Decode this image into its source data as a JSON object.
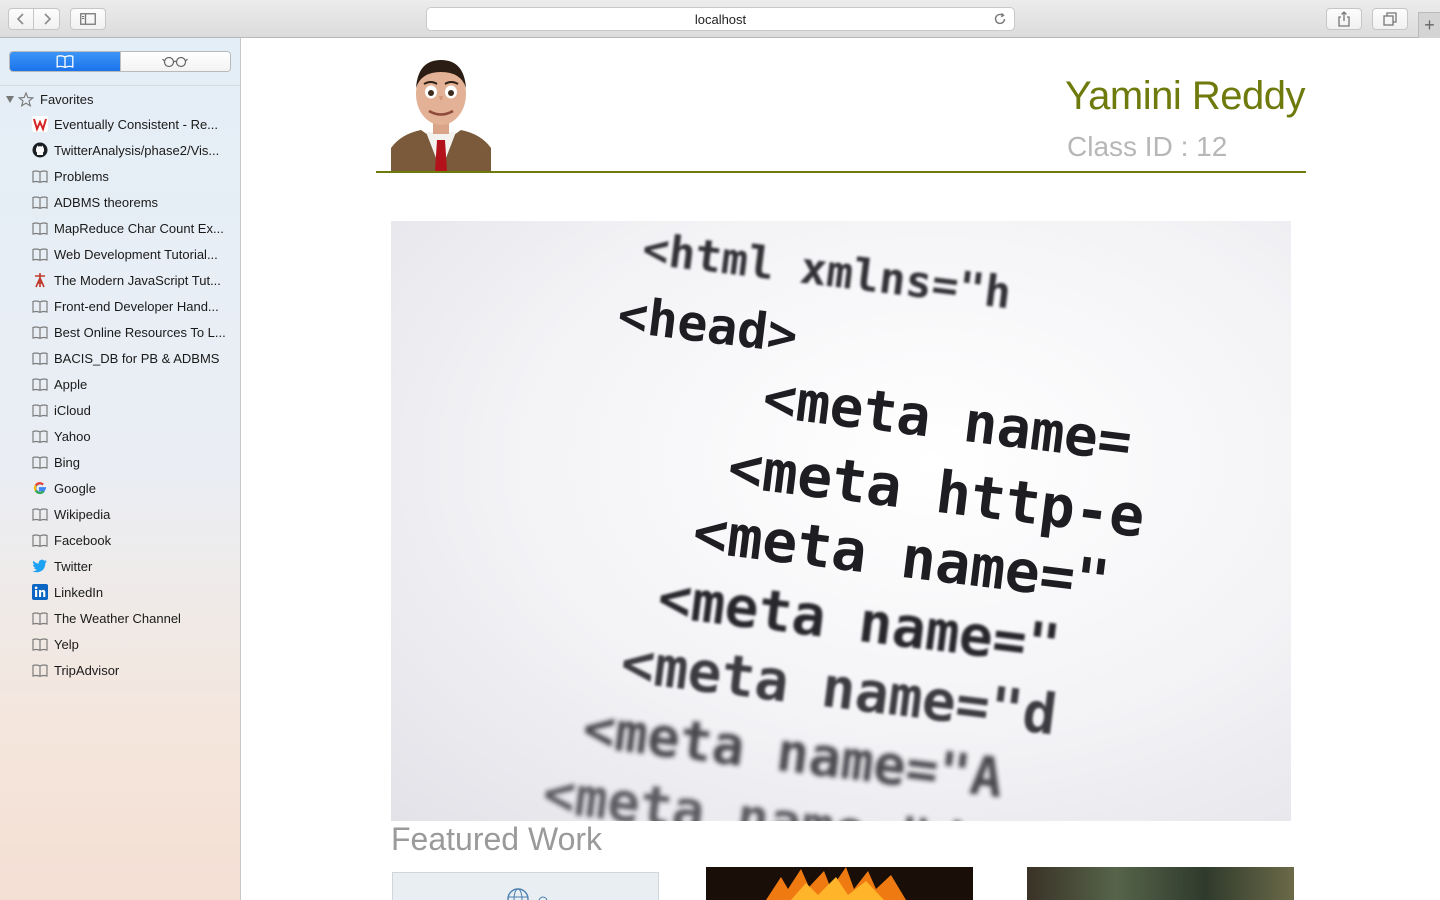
{
  "browser": {
    "url": "localhost"
  },
  "sidebar": {
    "favorites_label": "Favorites",
    "items": [
      {
        "label": "Eventually Consistent - Re...",
        "icon": "w-favicon-icon"
      },
      {
        "label": "TwitterAnalysis/phase2/Vis...",
        "icon": "github-icon"
      },
      {
        "label": "Problems",
        "icon": "bookmark-book-icon"
      },
      {
        "label": "ADBMS theorems",
        "icon": "bookmark-book-icon"
      },
      {
        "label": "MapReduce Char Count Ex...",
        "icon": "bookmark-book-icon"
      },
      {
        "label": "Web Development Tutorial...",
        "icon": "bookmark-book-icon"
      },
      {
        "label": "The Modern JavaScript Tut...",
        "icon": "javascript-info-icon"
      },
      {
        "label": "Front-end Developer Hand...",
        "icon": "bookmark-book-icon"
      },
      {
        "label": "Best Online Resources To L...",
        "icon": "bookmark-book-icon"
      },
      {
        "label": "BACIS_DB for PB & ADBMS",
        "icon": "bookmark-book-icon"
      },
      {
        "label": "Apple",
        "icon": "bookmark-book-icon"
      },
      {
        "label": "iCloud",
        "icon": "bookmark-book-icon"
      },
      {
        "label": "Yahoo",
        "icon": "bookmark-book-icon"
      },
      {
        "label": "Bing",
        "icon": "bookmark-book-icon"
      },
      {
        "label": "Google",
        "icon": "google-icon"
      },
      {
        "label": "Wikipedia",
        "icon": "bookmark-book-icon"
      },
      {
        "label": "Facebook",
        "icon": "bookmark-book-icon"
      },
      {
        "label": "Twitter",
        "icon": "twitter-bird-icon"
      },
      {
        "label": "LinkedIn",
        "icon": "linkedin-icon"
      },
      {
        "label": "The Weather Channel",
        "icon": "bookmark-book-icon"
      },
      {
        "label": "Yelp",
        "icon": "bookmark-book-icon"
      },
      {
        "label": "TripAdvisor",
        "icon": "bookmark-book-icon"
      }
    ]
  },
  "page": {
    "name": "Yamini Reddy",
    "class_id": "Class ID : 12",
    "featured_heading": "Featured Work",
    "hero_code_lines": [
      "<html xmlns=\"h",
      "<head>",
      "<meta name=",
      "<meta http-e",
      "<meta name=\"",
      "<meta name=\"",
      "<meta name=\"d",
      "<meta name=\"A",
      "<meta name=\"d"
    ]
  },
  "colors": {
    "accent_olive": "#6f7a0c",
    "muted_gray": "#b7b7b7",
    "sidebar_selected": "#1a74ec"
  }
}
